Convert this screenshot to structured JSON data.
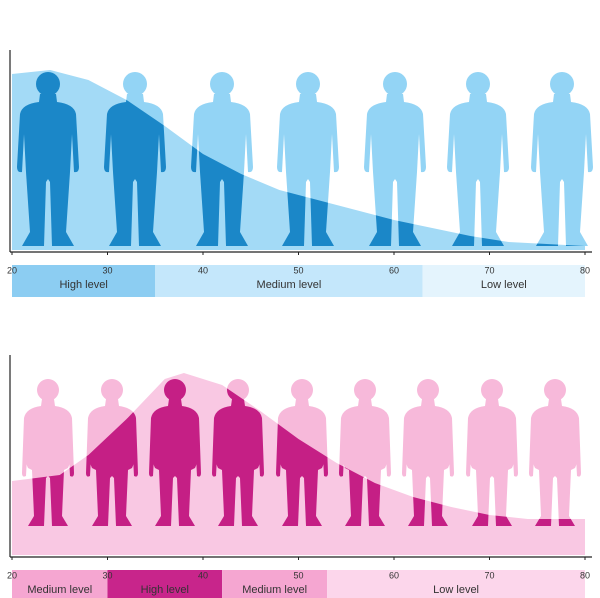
{
  "chart_data": [
    {
      "type": "area",
      "x": [
        20,
        24,
        28,
        32,
        36,
        40,
        44,
        48,
        52,
        56,
        60,
        64,
        68,
        72,
        76,
        80
      ],
      "values": [
        88,
        90,
        85,
        75,
        62,
        48,
        38,
        30,
        25,
        20,
        15,
        11,
        7,
        4,
        3,
        2
      ],
      "xlim": [
        20,
        80
      ],
      "ylim": [
        0,
        100
      ],
      "xticks": [
        20,
        30,
        40,
        50,
        60,
        70,
        80
      ],
      "color": "#a3daf6",
      "figure_color": "#93d4f5",
      "highlight_color": "#1b87c8",
      "figure": "man",
      "bands": [
        {
          "from": 20,
          "to": 35,
          "label": "High level",
          "color": "#8ccdf2"
        },
        {
          "from": 35,
          "to": 63,
          "label": "Medium level",
          "color": "#c4e7fb"
        },
        {
          "from": 63,
          "to": 80,
          "label": "Low level",
          "color": "#e4f4fd"
        }
      ]
    },
    {
      "type": "area",
      "x": [
        20,
        25,
        28,
        32,
        36,
        38,
        42,
        46,
        50,
        54,
        58,
        62,
        66,
        70,
        74,
        80
      ],
      "values": [
        37,
        40,
        50,
        68,
        88,
        91,
        85,
        72,
        58,
        46,
        36,
        29,
        24,
        20,
        18,
        18
      ],
      "xlim": [
        20,
        80
      ],
      "ylim": [
        0,
        100
      ],
      "xticks": [
        20,
        30,
        40,
        50,
        60,
        70,
        80
      ],
      "color": "#f9c8e3",
      "figure_color": "#f7b9da",
      "highlight_color": "#c51f85",
      "figure": "woman",
      "bands": [
        {
          "from": 20,
          "to": 30,
          "label": "Medium level",
          "color": "#f5a6d1"
        },
        {
          "from": 30,
          "to": 42,
          "label": "High level",
          "color": "#c8258b"
        },
        {
          "from": 42,
          "to": 53,
          "label": "Medium level",
          "color": "#f5a6d1"
        },
        {
          "from": 53,
          "to": 80,
          "label": "Low level",
          "color": "#fcd6eb"
        }
      ]
    }
  ]
}
